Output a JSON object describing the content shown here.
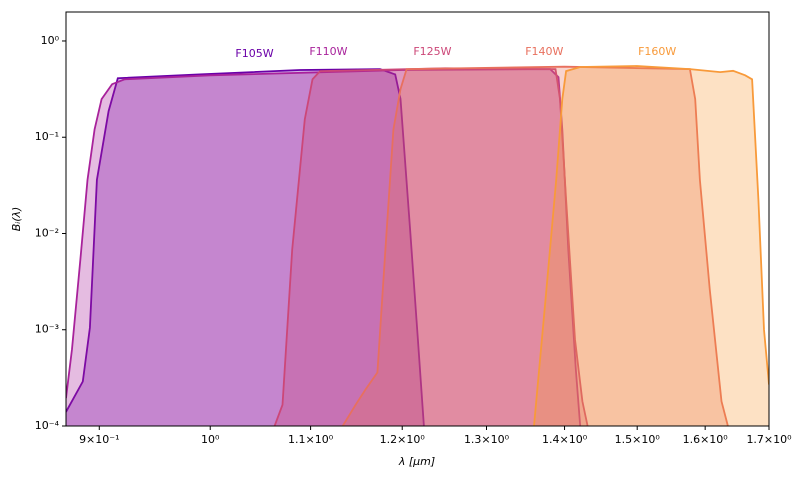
{
  "chart_data": {
    "type": "line",
    "x_label": "λ [μm]",
    "y_label": "Bᵢ(λ)",
    "x_scale": "log",
    "y_scale": "log",
    "fill_under": true,
    "xlim": [
      0.872,
      1.7
    ],
    "ylim": [
      0.0001,
      2
    ],
    "xticks": [
      {
        "value": 0.9,
        "label": "9×10⁻¹"
      },
      {
        "value": 1,
        "label": "10⁰"
      },
      {
        "value": 1.1,
        "label": "1.1×10⁰"
      },
      {
        "value": 1.2,
        "label": "1.2×10⁰"
      },
      {
        "value": 1.3,
        "label": "1.3×10⁰"
      },
      {
        "value": 1.4,
        "label": "1.4×10⁰"
      },
      {
        "value": 1.5,
        "label": "1.5×10⁰"
      },
      {
        "value": 1.6,
        "label": "1.6×10⁰"
      },
      {
        "value": 1.7,
        "label": "1.7×10⁰"
      }
    ],
    "yticks": [
      {
        "value": 0.0001,
        "label": "10⁻⁴"
      },
      {
        "value": 0.001,
        "label": "10⁻³"
      },
      {
        "value": 0.01,
        "label": "10⁻²"
      },
      {
        "value": 0.1,
        "label": "10⁻¹"
      },
      {
        "value": 1,
        "label": "10⁰"
      }
    ],
    "series": [
      {
        "name": "F105W",
        "color": "#6a00a8",
        "x": [
          0.872,
          0.886,
          0.892,
          0.898,
          0.908,
          0.916,
          0.99,
          1.089,
          1.175,
          1.192,
          1.198,
          1.209,
          1.218,
          1.225
        ],
        "values": [
          0.00014,
          0.00029,
          0.00105,
          0.036,
          0.187,
          0.41,
          0.45,
          0.5,
          0.51,
          0.45,
          0.25,
          0.011,
          0.00079,
          0.0001
        ]
      },
      {
        "name": "F110W",
        "color": "#a8229b",
        "x": [
          0.872,
          0.877,
          0.884,
          0.89,
          0.896,
          0.902,
          0.911,
          0.922,
          1.0,
          1.2,
          1.381,
          1.392,
          1.397,
          1.405,
          1.415,
          1.421
        ],
        "values": [
          0.000195,
          0.00063,
          0.0054,
          0.036,
          0.121,
          0.249,
          0.356,
          0.4,
          0.44,
          0.5,
          0.51,
          0.42,
          0.12,
          0.0068,
          0.00039,
          0.0001
        ]
      },
      {
        "name": "F125W",
        "color": "#cc4778",
        "x": [
          1.063,
          1.071,
          1.081,
          1.094,
          1.102,
          1.11,
          1.25,
          1.388,
          1.394,
          1.402,
          1.414,
          1.424,
          1.431
        ],
        "values": [
          0.0001,
          0.000166,
          0.0068,
          0.154,
          0.4,
          0.487,
          0.52,
          0.51,
          0.249,
          0.0225,
          0.00079,
          0.00018,
          0.0001
        ]
      },
      {
        "name": "F140W",
        "color": "#e8705e",
        "x": [
          1.134,
          1.148,
          1.159,
          1.172,
          1.181,
          1.19,
          1.198,
          1.205,
          1.4,
          1.577,
          1.585,
          1.592,
          1.607,
          1.625,
          1.635
        ],
        "values": [
          0.0001,
          0.000166,
          0.00024,
          0.00036,
          0.0068,
          0.12,
          0.316,
          0.51,
          0.54,
          0.51,
          0.249,
          0.036,
          0.0026,
          0.00018,
          0.0001
        ]
      },
      {
        "name": "F160W",
        "color": "#f89a3a",
        "x": [
          1.36,
          1.375,
          1.389,
          1.397,
          1.402,
          1.421,
          1.5,
          1.577,
          1.623,
          1.643,
          1.662,
          1.673,
          1.683,
          1.692,
          1.7
        ],
        "values": [
          0.0001,
          0.0021,
          0.036,
          0.249,
          0.487,
          0.536,
          0.55,
          0.51,
          0.475,
          0.49,
          0.44,
          0.4,
          0.0225,
          0.001,
          0.00027
        ]
      }
    ]
  }
}
